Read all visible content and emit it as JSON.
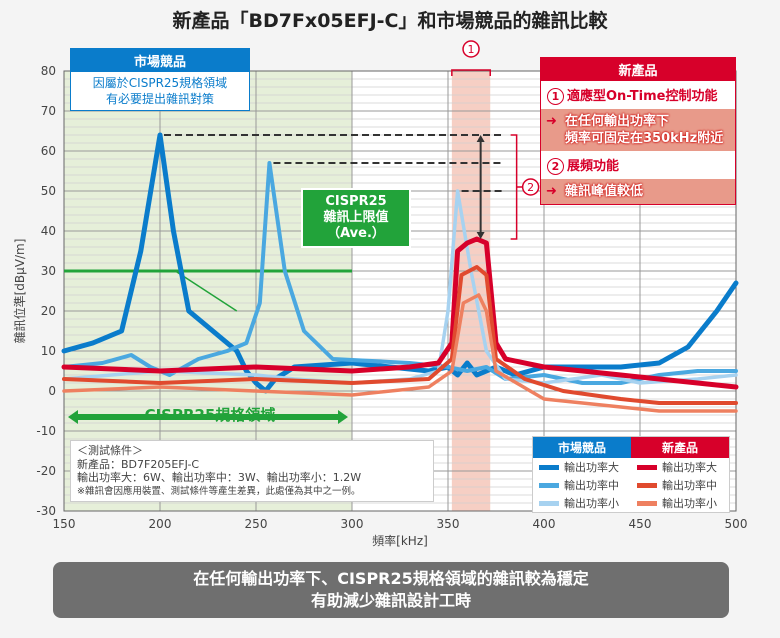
{
  "title": "新產品「BD7Fx05EFJ-C」和市場競品的雜訊比較",
  "competitor_box": {
    "header": "市場競品",
    "line1": "因屬於CISPR25規格領域",
    "line2": "有必要提出雜訊對策"
  },
  "new_box": {
    "header": "新產品",
    "item1_num": "1",
    "item1": "適應型On-Time控制功能",
    "point1_line1": "在任何輸出功率下",
    "point1_line2": "頻率可固定在350kHz附近",
    "item2_num": "2",
    "item2": "展頻功能",
    "point2": "雜訊峰值較低"
  },
  "cispr_box": {
    "line1": "CISPR25",
    "line2": "雜訊上限值",
    "line3": "（Ave.）"
  },
  "cispr_region_label": "CISPR25規格領域",
  "marker1": "1",
  "marker2": "2",
  "conditions": {
    "l1": "＜測試條件＞",
    "l2": "新產品：BD7F205EFJ-C",
    "l3": "輸出功率大：6W、輸出功率中：3W、輸出功率小：1.2W",
    "l4": "※雜訊會因應用裝置、測試條件等產生差異，此處僅為其中之一例。"
  },
  "legend": {
    "comp_header": "市場競品",
    "new_header": "新產品",
    "large": "輸出功率大",
    "mid": "輸出功率中",
    "small": "輸出功率小"
  },
  "banner": {
    "line1": "在任何輸出功率下、CISPR25規格領域的雜訊較為穩定",
    "line2": "有助減少雜訊設計工時"
  },
  "colors": {
    "comp_large": "#0a7ccb",
    "comp_mid": "#4aa8e0",
    "comp_small": "#a7d2f0",
    "new_large": "#d7002a",
    "new_mid": "#e04a2e",
    "new_small": "#ee8060",
    "cispr": "#22a33a"
  },
  "chart_data": {
    "type": "line",
    "title": "新產品「BD7Fx05EFJ-C」和市場競品的雜訊比較",
    "xlabel": "頻率[kHz]",
    "ylabel": "雜訊位準[dBμV/m]",
    "xlim": [
      150,
      500
    ],
    "ylim": [
      -30,
      80
    ],
    "xticks": [
      150,
      200,
      250,
      300,
      350,
      400,
      450,
      500
    ],
    "yticks": [
      80,
      70,
      60,
      50,
      40,
      30,
      20,
      10,
      0,
      -10,
      -20,
      -30
    ],
    "cispr_limit": 30,
    "cispr_range": [
      150,
      300
    ],
    "highlight_range": [
      352,
      372
    ],
    "series": [
      {
        "name": "市場競品 輸出功率大",
        "color": "#0a7ccb",
        "width": 5,
        "x": [
          150,
          165,
          180,
          190,
          200,
          207,
          215,
          230,
          240,
          245,
          250,
          255,
          260,
          270,
          300,
          320,
          340,
          350,
          355,
          360,
          365,
          375,
          385,
          400,
          420,
          440,
          460,
          475,
          490,
          500
        ],
        "y": [
          10,
          12,
          15,
          35,
          64,
          40,
          20,
          14,
          10,
          5,
          2,
          0,
          3,
          6,
          7,
          6,
          5,
          6,
          4,
          7,
          4,
          6,
          4,
          6,
          6,
          6,
          7,
          11,
          20,
          27
        ]
      },
      {
        "name": "市場競品 輸出功率中",
        "color": "#4aa8e0",
        "width": 4,
        "x": [
          150,
          170,
          185,
          195,
          205,
          220,
          235,
          245,
          252,
          257,
          265,
          275,
          290,
          330,
          350,
          360,
          370,
          380,
          400,
          420,
          440,
          460,
          480,
          500
        ],
        "y": [
          6,
          7,
          9,
          6,
          4,
          8,
          10,
          12,
          22,
          57,
          30,
          15,
          8,
          7,
          6,
          5,
          6,
          3,
          4,
          2,
          2,
          4,
          5,
          5
        ]
      },
      {
        "name": "市場競品 輸出功率小",
        "color": "#a7d2f0",
        "width": 3.5,
        "x": [
          150,
          200,
          250,
          270,
          300,
          330,
          345,
          350,
          355,
          362,
          370,
          380,
          400,
          430,
          450,
          480,
          500
        ],
        "y": [
          3,
          5,
          4,
          3,
          2,
          3,
          5,
          20,
          50,
          30,
          10,
          3,
          2,
          4,
          2,
          3,
          4
        ]
      },
      {
        "name": "新產品 輸出功率大",
        "color": "#d7002a",
        "width": 5,
        "x": [
          150,
          200,
          250,
          300,
          330,
          345,
          352,
          355,
          360,
          365,
          370,
          375,
          380,
          400,
          420,
          440,
          460,
          480,
          500
        ],
        "y": [
          6,
          5,
          6,
          5,
          6,
          7,
          12,
          35,
          37,
          38,
          37,
          12,
          8,
          6,
          5,
          4,
          3,
          2,
          1
        ]
      },
      {
        "name": "新產品 輸出功率中",
        "color": "#e04a2e",
        "width": 4,
        "x": [
          150,
          200,
          250,
          300,
          340,
          352,
          357,
          365,
          370,
          375,
          390,
          410,
          440,
          460,
          500
        ],
        "y": [
          3,
          2,
          3,
          2,
          3,
          8,
          29,
          31,
          29,
          8,
          3,
          0,
          -2,
          -3,
          -3
        ]
      },
      {
        "name": "新產品 輸出功率小",
        "color": "#ee8060",
        "width": 3.5,
        "x": [
          150,
          200,
          250,
          300,
          340,
          352,
          358,
          366,
          370,
          375,
          400,
          440,
          460,
          500
        ],
        "y": [
          0,
          1,
          0,
          -1,
          1,
          5,
          22,
          24,
          20,
          5,
          -2,
          -4,
          -5,
          -5
        ]
      }
    ]
  }
}
